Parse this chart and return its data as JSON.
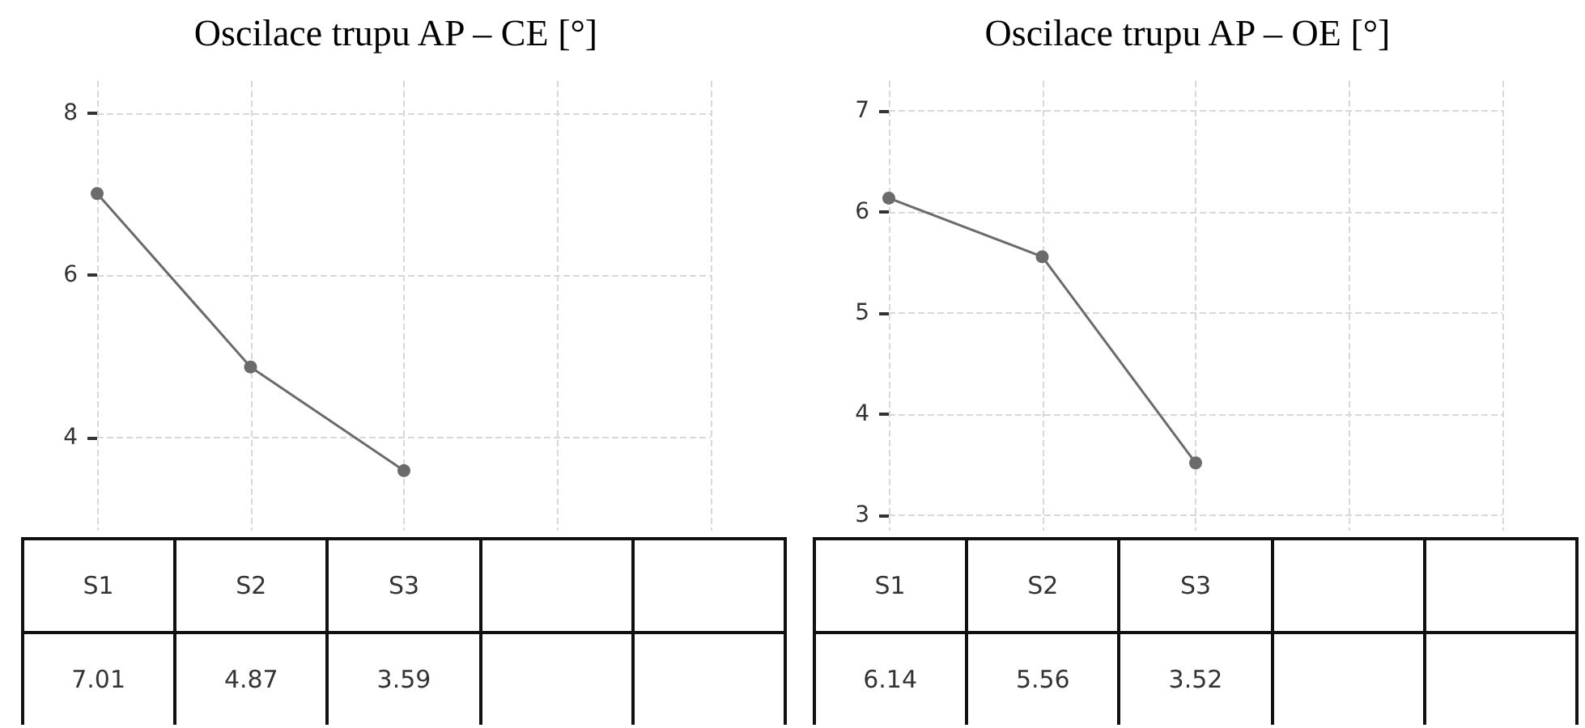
{
  "chart_data": [
    {
      "type": "line",
      "title": "Oscilace trupu AP – CE [°]",
      "categories": [
        "S1",
        "S2",
        "S3",
        null,
        null
      ],
      "series": [
        {
          "color": "#6b6b6b",
          "values": [
            7.01,
            4.87,
            3.59,
            null,
            null
          ]
        }
      ],
      "ylim": [
        2.85,
        8.4
      ],
      "yticks": [
        4,
        6,
        8
      ],
      "grid": true,
      "marker": "circle",
      "line_style": "solid",
      "data_labels": true,
      "tick_labels": "y"
    },
    {
      "type": "line",
      "title": "Oscilace trupu AP – OE [°]",
      "categories": [
        "S1",
        "S2",
        "S3",
        null,
        null
      ],
      "series": [
        {
          "color": "#6b6b6b",
          "values": [
            6.14,
            5.56,
            3.52,
            null,
            null
          ]
        }
      ],
      "ylim": [
        2.85,
        7.3
      ],
      "yticks": [
        3,
        4,
        5,
        6,
        7
      ],
      "grid": true,
      "marker": "circle",
      "line_style": "solid",
      "data_labels": true,
      "tick_labels": "y"
    }
  ]
}
